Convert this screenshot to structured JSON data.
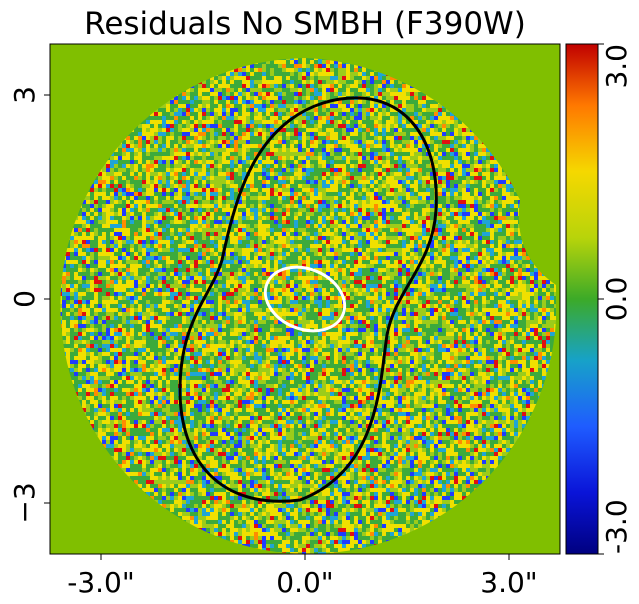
{
  "chart_data": {
    "type": "heatmap",
    "title": "Residuals No SMBH (F390W)",
    "xlabel": "",
    "ylabel": "",
    "x_ticks": [
      "-3.0\"",
      "0.0\"",
      "3.0\""
    ],
    "x_tick_values": [
      -3.0,
      0.0,
      3.0
    ],
    "y_ticks": [
      "3",
      "0",
      "−3"
    ],
    "y_tick_values": [
      3,
      0,
      -3
    ],
    "xlim": [
      -3.75,
      3.75
    ],
    "ylim": [
      -3.75,
      3.75
    ],
    "colorbar": {
      "ticks": [
        "3.0",
        "0.0",
        "-3.0"
      ],
      "tick_values": [
        3.0,
        0.0,
        -3.0
      ],
      "range": [
        -3.0,
        3.0
      ],
      "colormap": "jet-like",
      "colors": [
        "#000080",
        "#1f3cff",
        "#1fa5d6",
        "#3caa3c",
        "#9ccc1a",
        "#f0e000",
        "#ff8c00",
        "#e01010",
        "#a00000"
      ]
    },
    "background_color": "#80bf00",
    "data_region": "circular, radius approx 3.6 arcsec, with notch at right edge",
    "contours": [
      {
        "color": "#000000",
        "shape": "outer isophote (peanut-shaped)"
      },
      {
        "color": "#ffffff",
        "shape": "inner ellipse",
        "center": [
          0.0,
          0.0
        ],
        "semi_axes": [
          0.6,
          0.45
        ]
      }
    ],
    "grid": false
  }
}
